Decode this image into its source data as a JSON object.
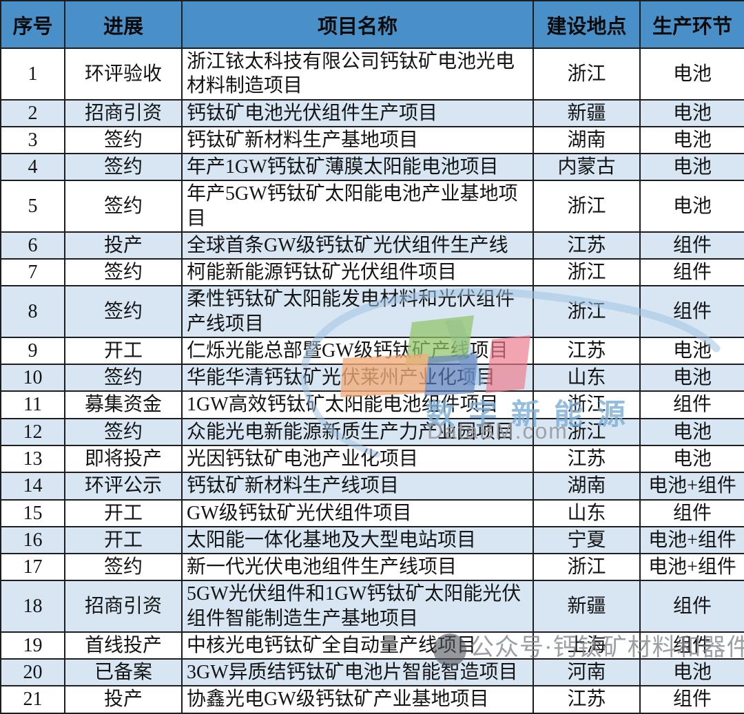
{
  "table": {
    "columns": [
      {
        "key": "index",
        "label": "序号"
      },
      {
        "key": "progress",
        "label": "进展"
      },
      {
        "key": "name",
        "label": "项目名称"
      },
      {
        "key": "location",
        "label": "建设地点"
      },
      {
        "key": "stage",
        "label": "生产环节"
      }
    ],
    "rows": [
      {
        "index": "1",
        "progress": "环评验收",
        "name": "浙江铱太科技有限公司钙钛矿电池光电材料制造项目",
        "location": "浙江",
        "stage": "电池"
      },
      {
        "index": "2",
        "progress": "招商引资",
        "name": "钙钛矿电池光伏组件生产项目",
        "location": "新疆",
        "stage": "电池"
      },
      {
        "index": "3",
        "progress": "签约",
        "name": "钙钛矿新材料生产基地项目",
        "location": "湖南",
        "stage": "电池"
      },
      {
        "index": "4",
        "progress": "签约",
        "name": "年产1GW钙钛矿薄膜太阳能电池项目",
        "location": "内蒙古",
        "stage": "电池"
      },
      {
        "index": "5",
        "progress": "签约",
        "name": "年产5GW钙钛矿太阳能电池产业基地项目",
        "location": "浙江",
        "stage": "电池"
      },
      {
        "index": "6",
        "progress": "投产",
        "name": "全球首条GW级钙钛矿光伏组件生产线",
        "location": "江苏",
        "stage": "组件"
      },
      {
        "index": "7",
        "progress": "签约",
        "name": "柯能新能源钙钛矿光伏组件项目",
        "location": "浙江",
        "stage": "组件"
      },
      {
        "index": "8",
        "progress": "签约",
        "name": "柔性钙钛矿太阳能发电材料和光伏组件产线项目",
        "location": "浙江",
        "stage": "组件"
      },
      {
        "index": "9",
        "progress": "开工",
        "name": "仁烁光能总部暨GW级钙钛矿产线项目",
        "location": "江苏",
        "stage": "电池"
      },
      {
        "index": "10",
        "progress": "签约",
        "name": "华能华清钙钛矿光伏莱州产业化项目",
        "location": "山东",
        "stage": "电池"
      },
      {
        "index": "11",
        "progress": "募集资金",
        "name": "1GW高效钙钛矿太阳能电池组件项目",
        "location": "浙江",
        "stage": "组件"
      },
      {
        "index": "12",
        "progress": "签约",
        "name": "众能光电新能源新质生产力产业园项目",
        "location": "浙江",
        "stage": "电池"
      },
      {
        "index": "13",
        "progress": "即将投产",
        "name": "光因钙钛矿电池产业化项目",
        "location": "江苏",
        "stage": "电池"
      },
      {
        "index": "14",
        "progress": "环评公示",
        "name": "钙钛矿新材料生产线项目",
        "location": "湖南",
        "stage": "电池+组件"
      },
      {
        "index": "15",
        "progress": "开工",
        "name": "GW级钙钛矿光伏组件项目",
        "location": "山东",
        "stage": "组件"
      },
      {
        "index": "16",
        "progress": "开工",
        "name": "太阳能一体化基地及大型电站项目",
        "location": "宁夏",
        "stage": "电池+组件"
      },
      {
        "index": "17",
        "progress": "签约",
        "name": "新一代光伏电池组件生产线项目",
        "location": "浙江",
        "stage": "电池+组件"
      },
      {
        "index": "18",
        "progress": "招商引资",
        "name": "5GW光伏组件和1GW钙钛矿太阳能光伏组件智能制造生产基地项目",
        "location": "新疆",
        "stage": "组件"
      },
      {
        "index": "19",
        "progress": "首线投产",
        "name": "中核光电钙钛矿全自动量产线项目",
        "location": "上海",
        "stage": "组件"
      },
      {
        "index": "20",
        "progress": "已备案",
        "name": "3GW异质结钙钛矿电池片智能智造项目",
        "location": "河南",
        "stage": "电池"
      },
      {
        "index": "21",
        "progress": "投产",
        "name": "协鑫光电GW级钙钛矿产业基地项目",
        "location": "江苏",
        "stage": "组件"
      }
    ]
  },
  "watermark_center": {
    "title": "数字新能源",
    "site": "DataBM.com"
  },
  "watermark_bottom": {
    "text": "公众号·钙钛矿材料和器件"
  },
  "colors": {
    "header_bg": "#4a90c8",
    "row_alt_bg": "#d8e6f3",
    "row_bg": "#ffffff",
    "border": "#1d1d1d",
    "logo_green": "#92c468",
    "logo_red": "#ec7a8a",
    "logo_orange": "#f2ac7a",
    "logo_blue": "#6080be",
    "logo_swoosh": "#a0c3e4",
    "wm_title_blue": "#7aacd6",
    "wm_gray": "#949496"
  }
}
